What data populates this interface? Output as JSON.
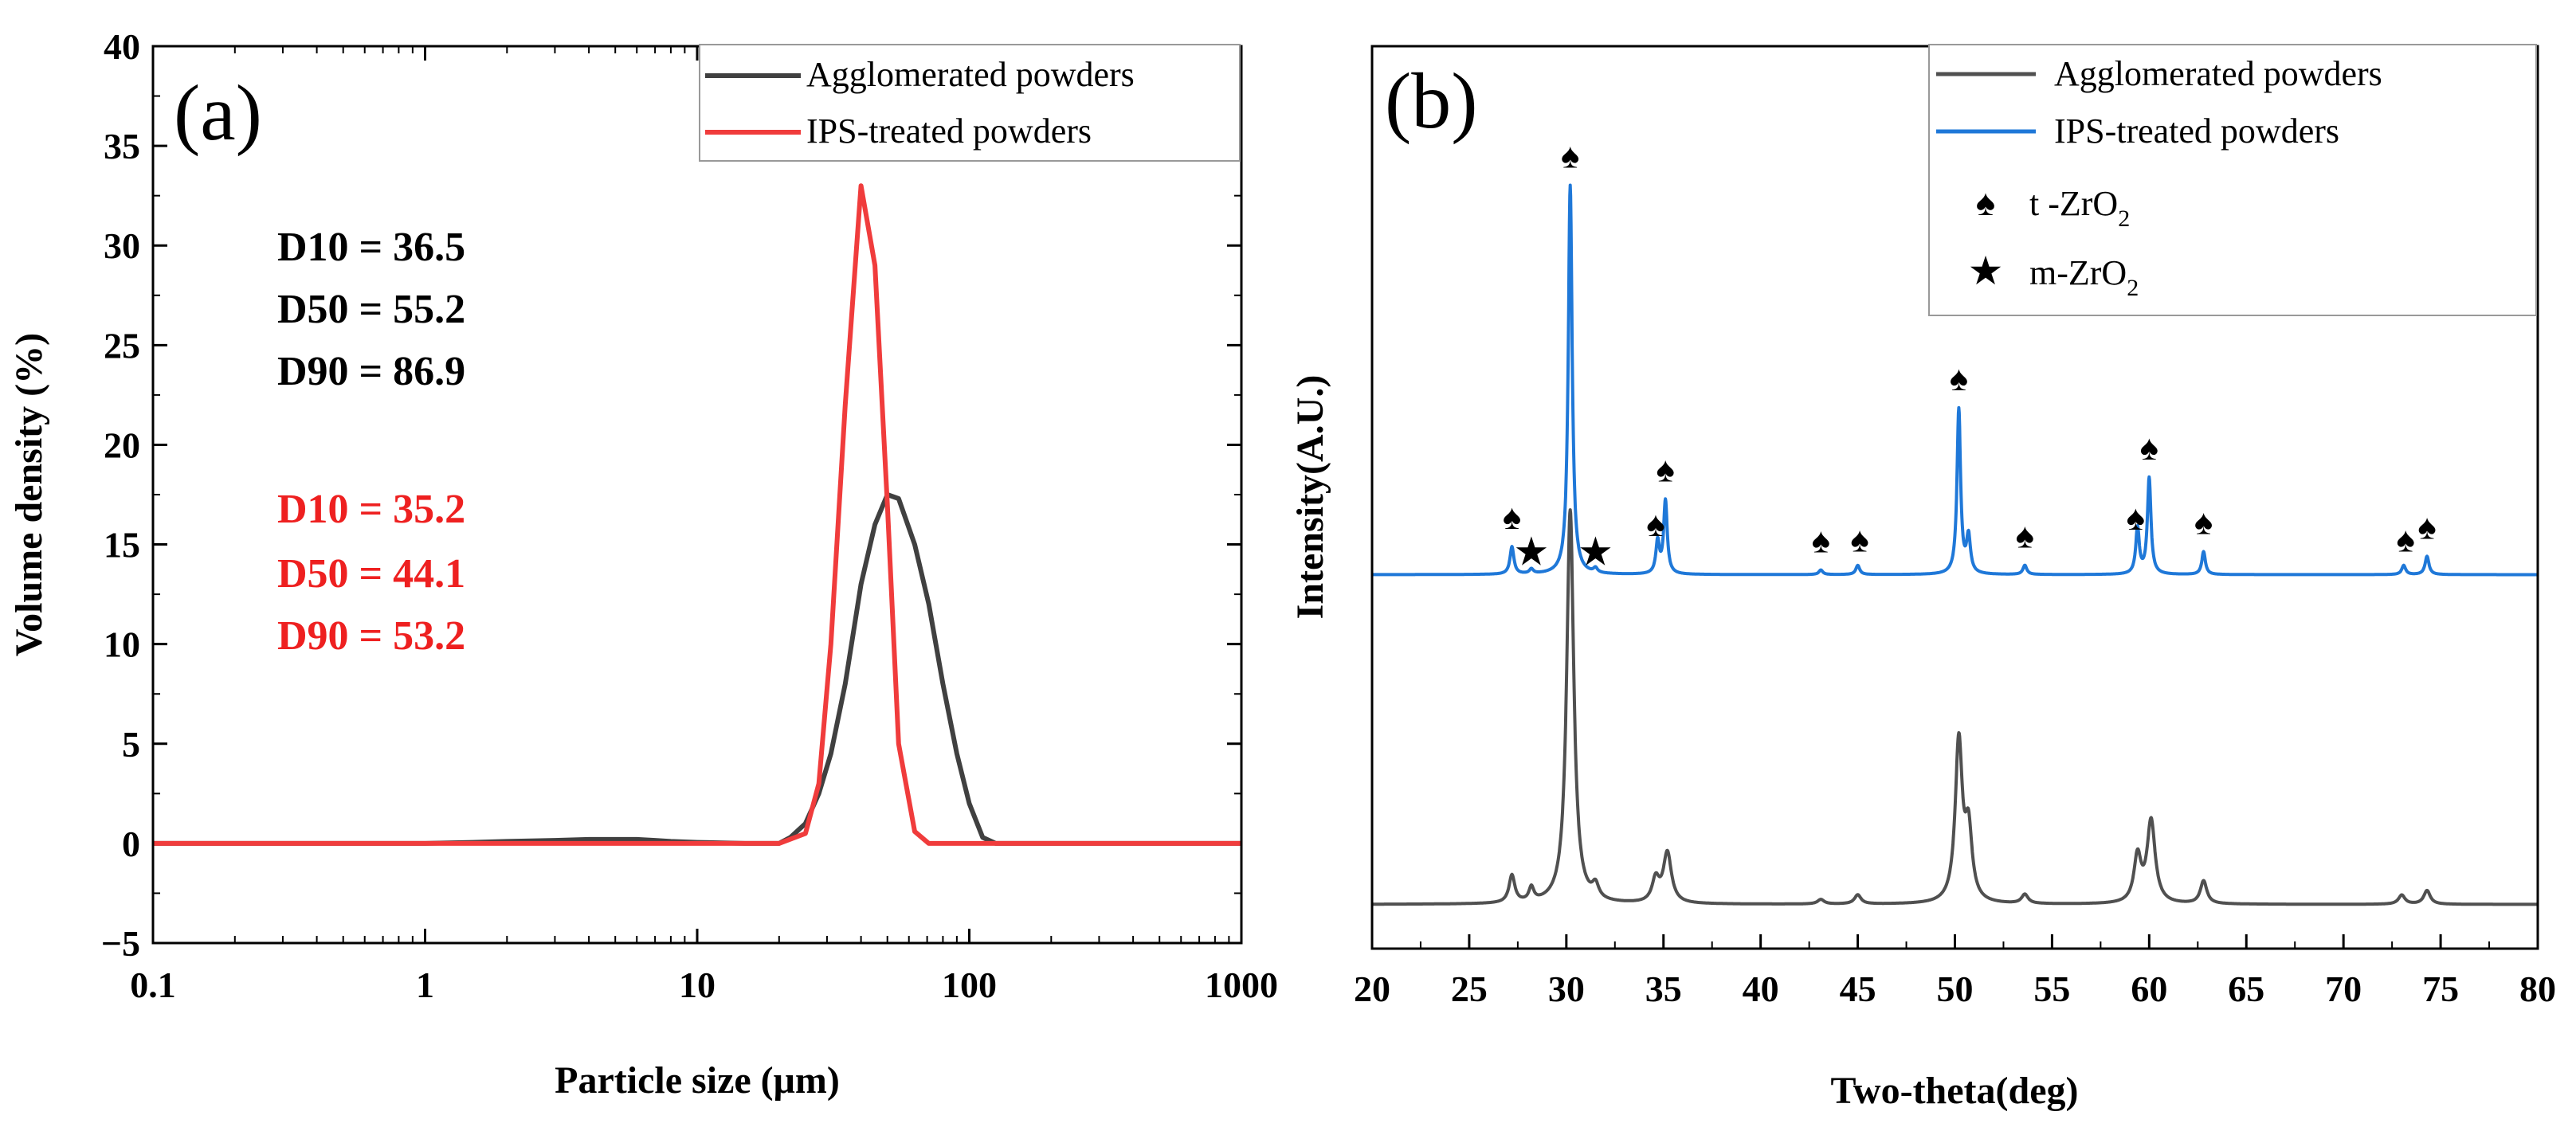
{
  "chart_data": [
    {
      "panel": "(a)",
      "type": "line",
      "xscale": "log",
      "xlabel": "Particle size (μm)",
      "ylabel": "Volume density (%)",
      "xlim": [
        0.1,
        1000
      ],
      "ylim": [
        -5,
        40
      ],
      "xticks": [
        "0.1",
        "1",
        "10",
        "100",
        "1000"
      ],
      "yticks": [
        "−5",
        "0",
        "5",
        "10",
        "15",
        "20",
        "25",
        "30",
        "35",
        "40"
      ],
      "legend_position": "top-right",
      "series": [
        {
          "name": "Agglomerated powders",
          "color": "#404040",
          "x": [
            0.1,
            1,
            1.5,
            2,
            3,
            4,
            5,
            6,
            7,
            8,
            10,
            15,
            20,
            22,
            25,
            28,
            31,
            35,
            40,
            45,
            50,
            55,
            63,
            71,
            80,
            90,
            100,
            112,
            125,
            140,
            1000
          ],
          "y": [
            0,
            0,
            0.05,
            0.1,
            0.15,
            0.2,
            0.2,
            0.2,
            0.15,
            0.1,
            0.05,
            0,
            0,
            0.3,
            1.0,
            2.5,
            4.5,
            8.0,
            13.0,
            16.0,
            17.5,
            17.3,
            15.0,
            12.0,
            8.0,
            4.5,
            2.0,
            0.3,
            0,
            0,
            0
          ]
        },
        {
          "name": "IPS-treated powders",
          "color": "#f03c3c",
          "x": [
            0.1,
            10,
            20,
            25,
            28,
            31,
            35,
            40,
            45,
            50,
            55,
            63,
            71,
            80,
            1000
          ],
          "y": [
            0,
            0,
            0,
            0.5,
            3,
            10,
            22,
            33,
            29,
            17,
            5,
            0.6,
            0,
            0,
            0
          ]
        }
      ],
      "annotations": {
        "black": [
          "D10 = 36.5",
          "D50 = 55.2",
          "D90 = 86.9"
        ],
        "red": [
          "D10 = 35.2",
          "D50 = 44.1",
          "D90 = 53.2"
        ]
      }
    },
    {
      "panel": "(b)",
      "type": "line",
      "xlabel": "Two-theta(deg)",
      "ylabel": "Intensity(A.U.)",
      "xlim": [
        20,
        80
      ],
      "xticks": [
        "20",
        "25",
        "30",
        "35",
        "40",
        "45",
        "50",
        "55",
        "60",
        "65",
        "70",
        "75",
        "80"
      ],
      "legend_position": "top-right",
      "series": [
        {
          "name": "Agglomerated powders",
          "color": "#505050",
          "baseline": 0.1,
          "peaks": [
            [
              27.2,
              0.06,
              0.18
            ],
            [
              28.2,
              0.03,
              0.15
            ],
            [
              30.2,
              0.86,
              0.22
            ],
            [
              31.5,
              0.03,
              0.2
            ],
            [
              34.6,
              0.05,
              0.22
            ],
            [
              35.2,
              0.11,
              0.25
            ],
            [
              43.1,
              0.01,
              0.2
            ],
            [
              45.0,
              0.02,
              0.2
            ],
            [
              50.2,
              0.35,
              0.22
            ],
            [
              50.7,
              0.15,
              0.22
            ],
            [
              53.6,
              0.02,
              0.2
            ],
            [
              59.4,
              0.1,
              0.22
            ],
            [
              60.1,
              0.18,
              0.25
            ],
            [
              62.8,
              0.05,
              0.2
            ],
            [
              73.0,
              0.02,
              0.2
            ],
            [
              74.3,
              0.03,
              0.2
            ]
          ]
        },
        {
          "name": "IPS-treated powders",
          "color": "#1f78d8",
          "baseline": 0.82,
          "peaks": [
            [
              27.2,
              0.06,
              0.12
            ],
            [
              28.2,
              0.01,
              0.12
            ],
            [
              30.2,
              0.85,
              0.12
            ],
            [
              31.5,
              0.01,
              0.12
            ],
            [
              34.7,
              0.07,
              0.11
            ],
            [
              35.1,
              0.16,
              0.11
            ],
            [
              43.1,
              0.01,
              0.12
            ],
            [
              45.0,
              0.02,
              0.12
            ],
            [
              50.2,
              0.36,
              0.11
            ],
            [
              50.7,
              0.08,
              0.12
            ],
            [
              53.6,
              0.02,
              0.12
            ],
            [
              59.4,
              0.1,
              0.11
            ],
            [
              60.0,
              0.21,
              0.11
            ],
            [
              62.8,
              0.05,
              0.11
            ],
            [
              73.1,
              0.02,
              0.12
            ],
            [
              74.3,
              0.04,
              0.12
            ]
          ]
        }
      ],
      "markers": {
        "t_ZrO2": [
          27.2,
          30.2,
          34.6,
          35.1,
          43.1,
          45.1,
          50.2,
          53.6,
          59.3,
          60.0,
          62.8,
          73.2,
          74.3
        ],
        "m_ZrO2": [
          28.2,
          31.5
        ]
      },
      "legend_symbols": [
        {
          "symbol": "♠",
          "label": "t -ZrO",
          "sub": "2"
        },
        {
          "symbol": "★",
          "label": "m-ZrO",
          "sub": "2"
        }
      ]
    }
  ]
}
